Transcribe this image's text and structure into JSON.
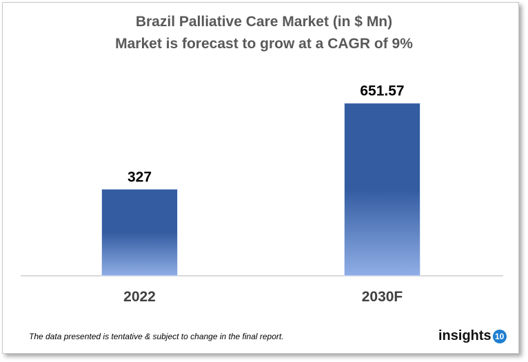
{
  "chart_data": {
    "type": "bar",
    "title": "Brazil Palliative Care Market (in $ Mn)",
    "subtitle": "Market is forecast to grow at a CAGR of 9%",
    "categories": [
      "2022",
      "2030F"
    ],
    "values": [
      327,
      651.57
    ],
    "data_labels": [
      "327",
      "651.57"
    ],
    "ylim": [
      0,
      700
    ],
    "grid": false,
    "colors": {
      "bar_top": "#335ca1",
      "bar_bottom": "#8fadE3"
    }
  },
  "footnote": "The data presented is tentative & subject to change in the final report.",
  "logo": {
    "text": "insights",
    "badge": "10"
  }
}
